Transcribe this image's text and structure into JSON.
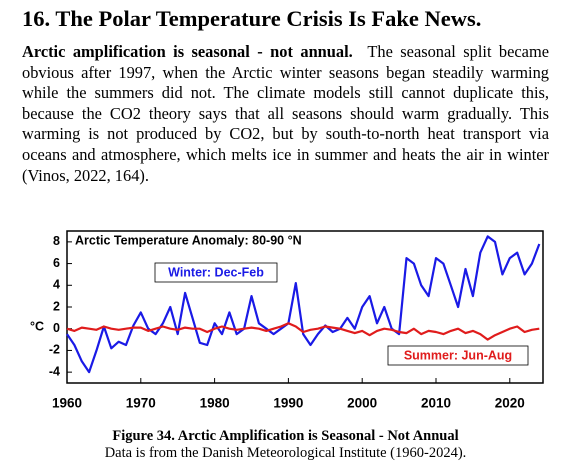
{
  "heading": "16.  The Polar Temperature Crisis Is Fake News.",
  "paragraph": {
    "lead": "Arctic amplification is seasonal - not annual.",
    "body": "The seasonal split became obvious after 1997, when the Arctic winter seasons began steadily warming while the summers did not.  The climate models still cannot duplicate this, because the CO2 theory says that all seasons should warm gradually.  This warming is not produced by CO2, but by south-to-north heat transport via oceans and atmosphere, which melts ice in summer and heats the air in winter (Vinos, 2022, 164)."
  },
  "figure": {
    "chart_data": {
      "type": "line",
      "title": "Arctic Temperature Anomaly: 80-90 °N",
      "y_label": "°C",
      "x": [
        1960,
        1961,
        1962,
        1963,
        1964,
        1965,
        1966,
        1967,
        1968,
        1969,
        1970,
        1971,
        1972,
        1973,
        1974,
        1975,
        1976,
        1977,
        1978,
        1979,
        1980,
        1981,
        1982,
        1983,
        1984,
        1985,
        1986,
        1987,
        1988,
        1989,
        1990,
        1991,
        1992,
        1993,
        1994,
        1995,
        1996,
        1997,
        1998,
        1999,
        2000,
        2001,
        2002,
        2003,
        2004,
        2005,
        2006,
        2007,
        2008,
        2009,
        2010,
        2011,
        2012,
        2013,
        2014,
        2015,
        2016,
        2017,
        2018,
        2019,
        2020,
        2021,
        2022,
        2023,
        2024
      ],
      "series": [
        {
          "name": "Winter: Dec-Feb",
          "color": "#1a1ae6",
          "values": [
            -0.5,
            -1.5,
            -3,
            -4,
            -2,
            0.2,
            -1.8,
            -1.2,
            -1.5,
            0.3,
            1.5,
            0,
            -0.5,
            0.5,
            2,
            -0.5,
            3.3,
            1,
            -1.3,
            -1.5,
            0.5,
            -0.5,
            1.5,
            -0.5,
            0,
            3,
            0.5,
            0,
            -0.5,
            0,
            0.5,
            4.2,
            -0.5,
            -1.5,
            -0.5,
            0.3,
            -0.3,
            0,
            1,
            0,
            2,
            3,
            0.5,
            2,
            0,
            -0.5,
            6.5,
            6,
            4,
            3,
            6.5,
            6,
            4,
            2,
            5.5,
            3,
            7,
            8.5,
            8,
            5,
            6.5,
            7,
            5,
            6,
            7.8
          ]
        },
        {
          "name": "Summer: Jun-Aug",
          "color": "#e01c1c",
          "values": [
            0,
            -0.2,
            0.1,
            0,
            -0.1,
            0.2,
            0,
            -0.1,
            0,
            0.1,
            0.1,
            -0.2,
            0,
            0.2,
            0,
            -0.1,
            0.1,
            0,
            0,
            -0.3,
            0,
            0.2,
            0,
            -0.1,
            0,
            0.1,
            0,
            -0.2,
            0,
            0.2,
            0.5,
            0.2,
            -0.3,
            -0.1,
            0,
            0.2,
            0.1,
            0,
            -0.2,
            -0.4,
            -0.2,
            -0.6,
            -0.2,
            0,
            -0.1,
            -0.3,
            -0.4,
            0,
            -0.5,
            -0.2,
            -0.3,
            -0.5,
            -0.2,
            0,
            -0.4,
            -0.2,
            -0.5,
            -1,
            -0.6,
            -0.3,
            0,
            0.2,
            -0.3,
            -0.1,
            0
          ]
        }
      ],
      "xlim": [
        1960,
        2024.5
      ],
      "ylim": [
        -5,
        9
      ],
      "xticks": [
        1960,
        1970,
        1980,
        1990,
        2000,
        2010,
        2020
      ],
      "yticks": [
        -4,
        -2,
        0,
        2,
        4,
        6,
        8
      ]
    },
    "caption": {
      "title": "Figure 34.  Arctic Amplification is Seasonal - Not Annual",
      "source": "Data is from the Danish Meteorological Institute (1960-2024)."
    }
  }
}
